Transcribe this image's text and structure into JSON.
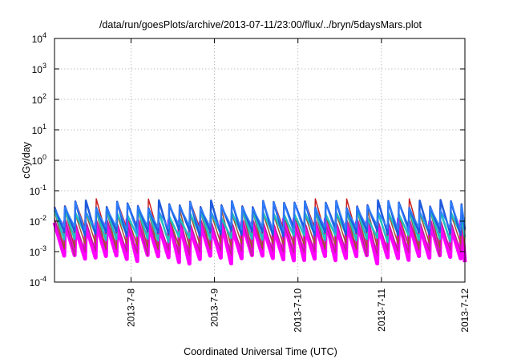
{
  "chart_data": {
    "type": "line",
    "title": "/data/run/goesPlots/archive/2013-07-11/23:00/flux/../bryn/5daysMars.plot",
    "xlabel": "Coordinated Universal Time (UTC)",
    "ylabel": "cGy/day",
    "x_range": [
      "2013-07-07T02:00",
      "2013-07-12T00:00"
    ],
    "x_ticks": [
      "2013-7-8",
      "2013-7-9",
      "2013-7-10",
      "2013-7-11",
      "2013-7-12"
    ],
    "y_scale": "log",
    "ylim": [
      0.0001,
      10000
    ],
    "y_ticks": [
      {
        "base": "10",
        "exp": "-4"
      },
      {
        "base": "10",
        "exp": "-3"
      },
      {
        "base": "10",
        "exp": "-2"
      },
      {
        "base": "10",
        "exp": "-1"
      },
      {
        "base": "10",
        "exp": "0"
      },
      {
        "base": "10",
        "exp": "1"
      },
      {
        "base": "10",
        "exp": "2"
      },
      {
        "base": "10",
        "exp": "3"
      },
      {
        "base": "10",
        "exp": "4"
      }
    ],
    "grid": true,
    "legend": "none",
    "period_hours": 3,
    "series": [
      {
        "color": "#ff00ff",
        "peak_low": 0.006,
        "peak_high": 0.012,
        "trough_low": 0.0004,
        "trough_high": 0.0008,
        "width": 5
      },
      {
        "color": "#c0208f",
        "peak_low": 0.007,
        "peak_high": 0.015,
        "trough_low": 0.0007,
        "trough_high": 0.0012,
        "width": 1.5
      },
      {
        "color": "#a0522d",
        "peak_low": 0.012,
        "peak_high": 0.025,
        "trough_low": 0.0012,
        "trough_high": 0.002,
        "width": 1.5
      },
      {
        "color": "#20c0c0",
        "peak_low": 0.012,
        "peak_high": 0.025,
        "trough_low": 0.002,
        "trough_high": 0.004,
        "width": 2.5
      },
      {
        "color": "#c81e1e",
        "peak_low": 0.03,
        "peak_high": 0.055,
        "trough_low": 0.003,
        "trough_high": 0.006,
        "width": 1.5
      },
      {
        "color": "#1e5adc",
        "peak_low": 0.025,
        "peak_high": 0.05,
        "trough_low": 0.003,
        "trough_high": 0.006,
        "width": 2.5
      },
      {
        "color": "#3282ff",
        "peak_low": 0.02,
        "peak_high": 0.045,
        "trough_low": 0.004,
        "trough_high": 0.008,
        "width": 1.5
      }
    ]
  }
}
